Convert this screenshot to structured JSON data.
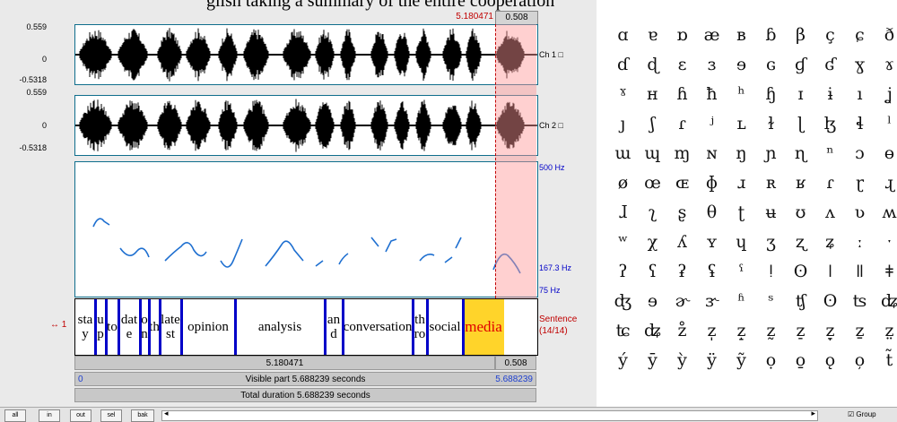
{
  "caption": "glish taking a summary of the entire cooperation",
  "editor": {
    "cursor_time": "5.180471",
    "selection_len_top": "0.508",
    "wave": {
      "ymax": "0.559",
      "zero": "0",
      "ymin": "-0.5318",
      "ch1_label": "Ch 1 □",
      "ch2_label": "Ch 2 □"
    },
    "pitch": {
      "top_label": "500 Hz",
      "cursor_label": "167.3 Hz",
      "bottom_label": "75 Hz"
    },
    "tier": {
      "number_label": "↔ 1",
      "name": "Sentence",
      "count": "(14/14)",
      "segments": [
        {
          "text": "stay"
        },
        {
          "text": "up"
        },
        {
          "text": "to"
        },
        {
          "text": "date"
        },
        {
          "text": "on"
        },
        {
          "text": "th"
        },
        {
          "text": "latest"
        },
        {
          "text": "opinion"
        },
        {
          "text": "analysis"
        },
        {
          "text": "and"
        },
        {
          "text": "conversation"
        },
        {
          "text": "thro"
        },
        {
          "text": "social"
        },
        {
          "text": "media"
        }
      ]
    },
    "bars": {
      "left_time": "5.180471",
      "right_time": "0.508",
      "visible_start": "0",
      "visible_label": "Visible part 5.688239 seconds",
      "visible_end": "5.688239",
      "total_label": "Total duration 5.688239 seconds"
    },
    "buttons": [
      "all",
      "in",
      "out",
      "sel",
      "bak"
    ],
    "scroll_left": "◂",
    "scroll_right": "▸",
    "group_label": "☑ Group"
  },
  "ipa_symbols": [
    "ɑ",
    "ɐ",
    "ɒ",
    "æ",
    "ʙ",
    "ɓ",
    "β",
    "ç",
    "ɕ",
    "ð",
    "ɗ",
    "ɖ",
    "ɛ",
    "ɜ",
    "ɘ",
    "ɢ",
    "ɠ",
    "ʛ",
    "ɣ",
    "ɤ",
    "ˠ",
    "ʜ",
    "ɦ",
    "ħ",
    "ʰ",
    "ɧ",
    "ɪ",
    "ɨ",
    "ı",
    "ʝ",
    "ȷ",
    "ʃ",
    "ɾ",
    "ʲ",
    "ʟ",
    "ɫ",
    "ɭ",
    "ɮ",
    "ɬ",
    "ˡ",
    "ɯ",
    "ɰ",
    "ɱ",
    "ɴ",
    "ŋ",
    "ɲ",
    "ɳ",
    "ⁿ",
    "ɔ",
    "ɵ",
    "ø",
    "œ",
    "ɶ",
    "ɸ",
    "ɹ",
    "ʀ",
    "ʁ",
    "ɾ",
    "ɽ",
    "ɻ",
    "ɺ",
    "ʅ",
    "ʂ",
    "θ",
    "ʈ",
    "ʉ",
    "ʊ",
    "ʌ",
    "ʋ",
    "ʍ",
    "ʷ",
    "χ",
    "ʎ",
    "ʏ",
    "ɥ",
    "ʒ",
    "ʐ",
    "ʑ",
    "ː",
    "ˑ",
    "ʔ",
    "ʕ",
    "ʡ",
    "ʢ",
    "ˤ",
    "ǃ",
    "ʘ",
    "ǀ",
    "ǁ",
    "ǂ",
    "ʤ",
    "ɘ",
    "ɚ",
    "ɝ",
    "ʱ",
    "ˢ",
    "ʧ",
    "ʘ",
    "ʦ",
    "ʥ",
    "ʨ",
    "ʥ",
    "z̊",
    "z̩",
    "z̝",
    "z̰",
    "z̠",
    "z̞",
    "ẕ",
    "z̤",
    "ý",
    "ȳ",
    "ỳ",
    "ÿ",
    "ỹ",
    "ọ",
    "o̱",
    "ǫ",
    "o̦",
    "t̃"
  ]
}
